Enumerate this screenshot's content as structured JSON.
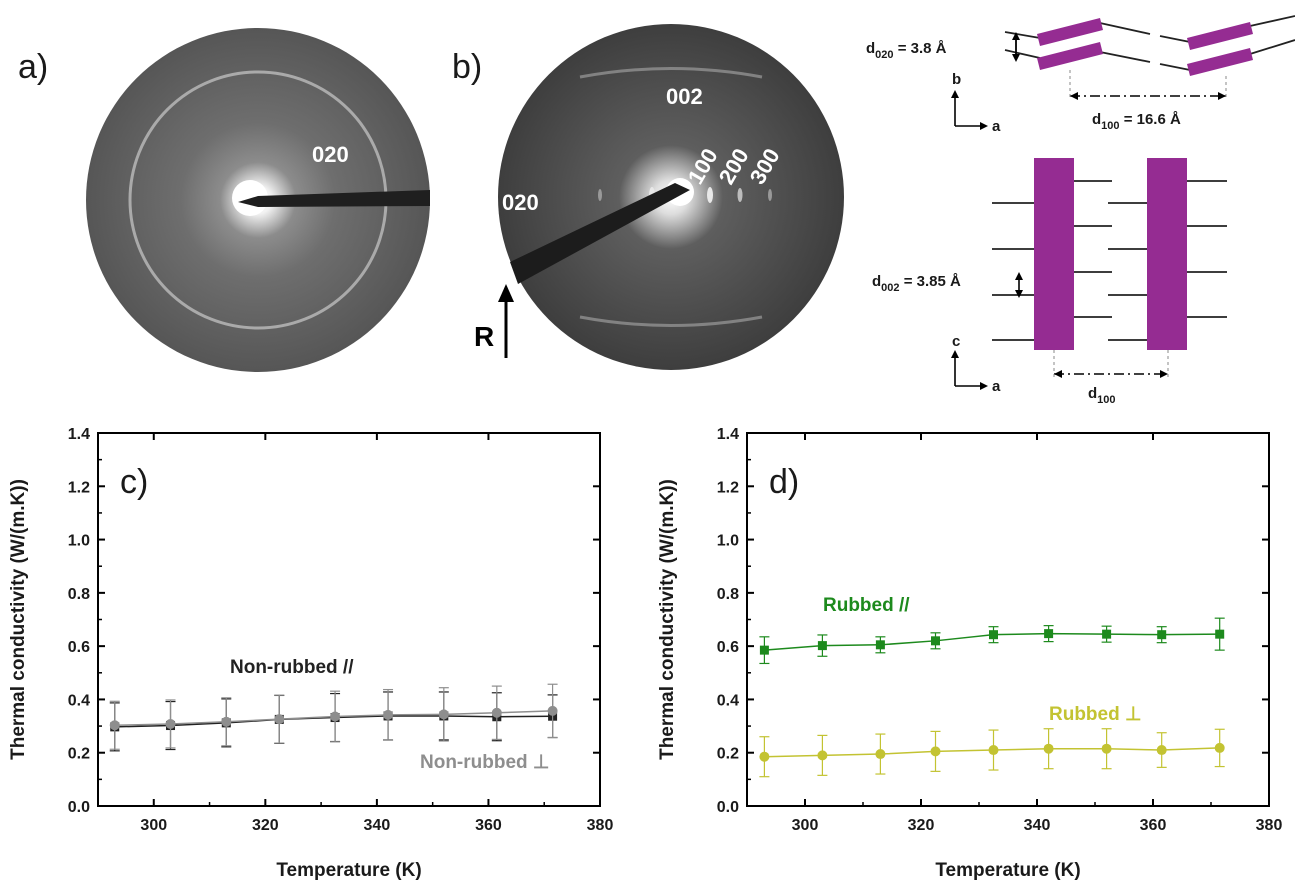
{
  "panels": {
    "a": {
      "label": "a)",
      "rings": [
        "020"
      ]
    },
    "b": {
      "label": "b)",
      "rings": [
        "002",
        "020",
        "100",
        "200",
        "300"
      ],
      "arrow_label": "R"
    }
  },
  "schematic": {
    "top": {
      "d020_label": "d",
      "d020_sub": "020",
      "d020_value": " = 3.8 Å",
      "axis_vertical": "b",
      "axis_horizontal": "a",
      "d100_label": "d",
      "d100_sub": "100",
      "d100_value": " = 16.6 Å"
    },
    "bottom": {
      "d002_label": "d",
      "d002_sub": "002",
      "d002_value": " = 3.85 Å",
      "axis_vertical": "c",
      "axis_horizontal": "a",
      "d100_label": "d",
      "d100_sub": "100"
    },
    "colors": {
      "lamella": "#952c92"
    }
  },
  "chart_data": [
    {
      "type": "line",
      "panel_label": "c)",
      "xlabel": "Temperature (K)",
      "ylabel": "Thermal conductivity (W/(m.K))",
      "xlim": [
        290,
        380
      ],
      "ylim": [
        0.0,
        1.4
      ],
      "xticks": [
        300,
        320,
        340,
        360,
        380
      ],
      "yticks": [
        0.0,
        0.2,
        0.4,
        0.6,
        0.8,
        1.0,
        1.2,
        1.4
      ],
      "x": [
        293,
        303,
        313,
        322.5,
        332.5,
        342,
        352,
        361.5,
        371.5
      ],
      "series": [
        {
          "name": "Non-rubbed //",
          "values": [
            0.297,
            0.302,
            0.312,
            0.325,
            0.332,
            0.338,
            0.338,
            0.335,
            0.337
          ],
          "errors": [
            0.09,
            0.09,
            0.09,
            0.09,
            0.09,
            0.09,
            0.09,
            0.09,
            0.08
          ],
          "color": "#222222",
          "marker": "square"
        },
        {
          "name": "Non-rubbed ⊥",
          "values": [
            0.303,
            0.308,
            0.316,
            0.326,
            0.336,
            0.342,
            0.344,
            0.35,
            0.357
          ],
          "errors": [
            0.09,
            0.09,
            0.09,
            0.09,
            0.095,
            0.095,
            0.1,
            0.1,
            0.1
          ],
          "color": "#8e8e8e",
          "marker": "circle"
        }
      ]
    },
    {
      "type": "line",
      "panel_label": "d)",
      "xlabel": "Temperature (K)",
      "ylabel": "Thermal conductivity (W/(m.K))",
      "xlim": [
        290,
        380
      ],
      "ylim": [
        0.0,
        1.4
      ],
      "xticks": [
        300,
        320,
        340,
        360,
        380
      ],
      "yticks": [
        0.0,
        0.2,
        0.4,
        0.6,
        0.8,
        1.0,
        1.2,
        1.4
      ],
      "x": [
        293,
        303,
        313,
        322.5,
        332.5,
        342,
        352,
        361.5,
        371.5
      ],
      "series": [
        {
          "name": "Rubbed //",
          "values": [
            0.585,
            0.602,
            0.605,
            0.62,
            0.643,
            0.647,
            0.645,
            0.643,
            0.645
          ],
          "errors": [
            0.05,
            0.04,
            0.03,
            0.03,
            0.03,
            0.03,
            0.03,
            0.03,
            0.06
          ],
          "color": "#1d8a1d",
          "marker": "square"
        },
        {
          "name": "Rubbed ⊥",
          "values": [
            0.185,
            0.19,
            0.195,
            0.205,
            0.21,
            0.215,
            0.215,
            0.21,
            0.218
          ],
          "errors": [
            0.075,
            0.075,
            0.075,
            0.075,
            0.075,
            0.075,
            0.075,
            0.065,
            0.07
          ],
          "color": "#c3c332",
          "marker": "circle"
        }
      ]
    }
  ]
}
